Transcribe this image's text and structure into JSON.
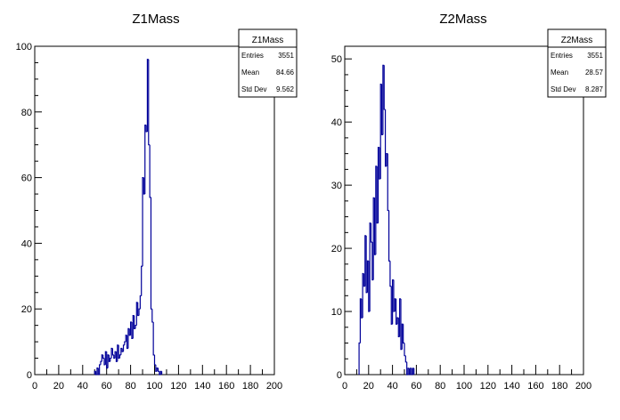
{
  "chart_data": [
    {
      "type": "histogram",
      "title": "Z1Mass",
      "xlim": [
        0,
        200
      ],
      "ylim": [
        0,
        100
      ],
      "x_ticks": [
        0,
        20,
        40,
        60,
        80,
        100,
        120,
        140,
        160,
        180,
        200
      ],
      "y_ticks": [
        0,
        20,
        40,
        60,
        80,
        100
      ],
      "bin_width": 1,
      "series": [
        {
          "color": "#000099",
          "bins_start": 50,
          "values": [
            1,
            0,
            2,
            0,
            3,
            4,
            6,
            5,
            3,
            7,
            2,
            6,
            4,
            5,
            8,
            6,
            5,
            7,
            4,
            9,
            5,
            6,
            8,
            7,
            9,
            10,
            12,
            8,
            14,
            12,
            16,
            11,
            18,
            14,
            15,
            22,
            18,
            20,
            24,
            33,
            60,
            55,
            76,
            74,
            96,
            70,
            54,
            20,
            16,
            6,
            3,
            1,
            2,
            1,
            0,
            1
          ]
        }
      ],
      "stats": {
        "title": "Z1Mass",
        "rows": [
          {
            "label": "Entries",
            "value": "3551"
          },
          {
            "label": "Mean",
            "value": "84.66"
          },
          {
            "label": "Std Dev",
            "value": "9.562"
          }
        ]
      }
    },
    {
      "type": "histogram",
      "title": "Z2Mass",
      "xlim": [
        0,
        200
      ],
      "ylim": [
        0,
        52
      ],
      "x_ticks": [
        0,
        20,
        40,
        60,
        80,
        100,
        120,
        140,
        160,
        180,
        200
      ],
      "y_ticks": [
        0,
        10,
        20,
        30,
        40,
        50
      ],
      "bin_width": 1,
      "series": [
        {
          "color": "#000099",
          "bins_start": 12,
          "values": [
            5,
            12,
            9,
            16,
            14,
            22,
            13,
            18,
            10,
            24,
            21,
            15,
            28,
            19,
            33,
            24,
            36,
            31,
            46,
            38,
            49,
            42,
            33,
            35,
            26,
            18,
            14,
            8,
            15,
            10,
            12,
            8,
            9,
            6,
            12,
            4,
            8,
            5,
            3,
            2,
            0,
            1,
            0,
            1,
            0,
            1
          ]
        }
      ],
      "stats": {
        "title": "Z2Mass",
        "rows": [
          {
            "label": "Entries",
            "value": "3551"
          },
          {
            "label": "Mean",
            "value": "28.57"
          },
          {
            "label": "Std Dev",
            "value": "8.287"
          }
        ]
      }
    }
  ]
}
